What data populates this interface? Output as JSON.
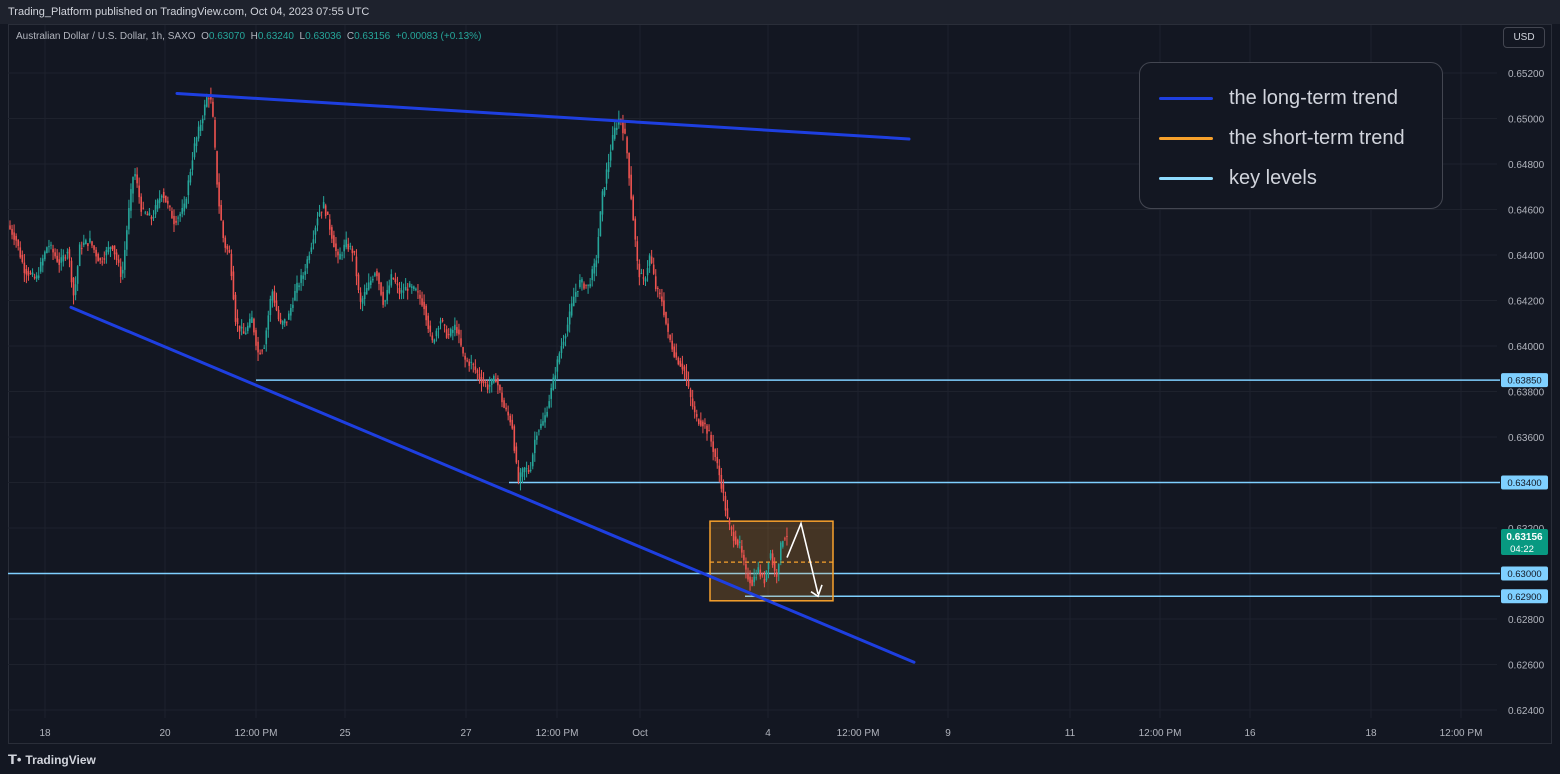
{
  "header": {
    "publish_line": "Trading_Platform published on TradingView.com, Oct 04, 2023 07:55 UTC"
  },
  "symbol": {
    "name": "Australian Dollar / U.S. Dollar, 1h, SAXO",
    "open_label": "O",
    "open": "0.63070",
    "high_label": "H",
    "high": "0.63240",
    "low_label": "L",
    "low": "0.63036",
    "close_label": "C",
    "close": "0.63156",
    "change": "+0.00083 (+0.13%)"
  },
  "currency_button": "USD",
  "legend": {
    "items": [
      {
        "label": "the long-term trend",
        "color": "#1e3fe0"
      },
      {
        "label": "the short-term trend",
        "color": "#f7a12c"
      },
      {
        "label": "key levels",
        "color": "#8fdcff"
      }
    ]
  },
  "footer": {
    "brand": "TradingView",
    "brand_icon": "tradingview-logo-icon"
  },
  "chart_data": {
    "type": "candlestick",
    "title": "",
    "price_ticks": [
      "0.65200",
      "0.65000",
      "0.64800",
      "0.64600",
      "0.64400",
      "0.64200",
      "0.64000",
      "0.63800",
      "0.63600",
      "0.63400",
      "0.63200",
      "0.62800",
      "0.62600",
      "0.62400"
    ],
    "y_range": [
      0.6236,
      0.6546
    ],
    "time_ticks": [
      "18",
      "20",
      "12:00 PM",
      "25",
      "27",
      "12:00 PM",
      "Oct",
      "4",
      "12:00 PM",
      "9",
      "11",
      "12:00 PM",
      "16",
      "18",
      "12:00 PM"
    ],
    "key_levels": [
      {
        "price": 0.6385,
        "label": "0.63850",
        "from": "Sep 21"
      },
      {
        "price": 0.634,
        "label": "0.63400",
        "from": "Sep 28"
      },
      {
        "price": 0.63,
        "label": "0.63000",
        "from": "Sep 18"
      },
      {
        "price": 0.629,
        "label": "0.62900",
        "from": "Oct 3"
      }
    ],
    "last_price": {
      "price": 0.63156,
      "label": "0.63156",
      "countdown": "04:22",
      "color": "#089981"
    },
    "long_term_trend_lines": [
      {
        "from": {
          "date": "Sep 19",
          "price": 0.6511
        },
        "to": {
          "date": "Oct 8",
          "price": 0.6491
        }
      },
      {
        "from": {
          "date": "Sep 18",
          "price": 0.6417
        },
        "to": {
          "date": "Oct 8",
          "price": 0.6261
        }
      }
    ],
    "consolidation_box": {
      "top": 0.6323,
      "bottom": 0.6288,
      "mid": 0.6305,
      "from": "Oct 3",
      "to": "Oct 4"
    },
    "projection_arrow": "up then down toward 0.62900",
    "colors": {
      "up": "#26a69a",
      "down": "#ef5350",
      "background": "#131722",
      "grid": "#1e222d",
      "trend": "#1e3fe0",
      "level": "#7fd0ff",
      "box": "#f7a12c"
    },
    "price_path": [
      [
        0,
        0.6453
      ],
      [
        8,
        0.6447
      ],
      [
        16,
        0.6434
      ],
      [
        28,
        0.6429
      ],
      [
        40,
        0.6445
      ],
      [
        52,
        0.6436
      ],
      [
        60,
        0.6443
      ],
      [
        66,
        0.6421
      ],
      [
        72,
        0.6444
      ],
      [
        82,
        0.6446
      ],
      [
        92,
        0.6437
      ],
      [
        104,
        0.6445
      ],
      [
        114,
        0.643
      ],
      [
        120,
        0.6456
      ],
      [
        126,
        0.6478
      ],
      [
        134,
        0.6459
      ],
      [
        144,
        0.6456
      ],
      [
        154,
        0.6468
      ],
      [
        166,
        0.6455
      ],
      [
        176,
        0.646
      ],
      [
        186,
        0.6487
      ],
      [
        194,
        0.65
      ],
      [
        200,
        0.6511
      ],
      [
        204,
        0.6506
      ],
      [
        210,
        0.6466
      ],
      [
        216,
        0.6445
      ],
      [
        222,
        0.644
      ],
      [
        228,
        0.641
      ],
      [
        236,
        0.6405
      ],
      [
        244,
        0.6412
      ],
      [
        250,
        0.6397
      ],
      [
        256,
        0.64
      ],
      [
        264,
        0.6425
      ],
      [
        272,
        0.6409
      ],
      [
        280,
        0.6412
      ],
      [
        288,
        0.6425
      ],
      [
        296,
        0.6432
      ],
      [
        304,
        0.6446
      ],
      [
        310,
        0.6458
      ],
      [
        316,
        0.6462
      ],
      [
        322,
        0.6452
      ],
      [
        330,
        0.6438
      ],
      [
        338,
        0.6445
      ],
      [
        346,
        0.6441
      ],
      [
        352,
        0.6418
      ],
      [
        360,
        0.6426
      ],
      [
        368,
        0.6434
      ],
      [
        376,
        0.6418
      ],
      [
        384,
        0.6431
      ],
      [
        392,
        0.6423
      ],
      [
        400,
        0.6426
      ],
      [
        408,
        0.6424
      ],
      [
        416,
        0.6418
      ],
      [
        424,
        0.6401
      ],
      [
        432,
        0.6412
      ],
      [
        440,
        0.6404
      ],
      [
        448,
        0.6409
      ],
      [
        456,
        0.6394
      ],
      [
        464,
        0.6392
      ],
      [
        472,
        0.6386
      ],
      [
        480,
        0.6382
      ],
      [
        488,
        0.6386
      ],
      [
        496,
        0.6373
      ],
      [
        504,
        0.6366
      ],
      [
        510,
        0.634
      ],
      [
        516,
        0.6346
      ],
      [
        522,
        0.6345
      ],
      [
        528,
        0.6362
      ],
      [
        536,
        0.6367
      ],
      [
        544,
        0.6382
      ],
      [
        552,
        0.6398
      ],
      [
        560,
        0.641
      ],
      [
        566,
        0.6422
      ],
      [
        572,
        0.6428
      ],
      [
        580,
        0.6426
      ],
      [
        588,
        0.6437
      ],
      [
        594,
        0.6465
      ],
      [
        600,
        0.648
      ],
      [
        606,
        0.6494
      ],
      [
        612,
        0.6501
      ],
      [
        618,
        0.649
      ],
      [
        624,
        0.6462
      ],
      [
        630,
        0.6433
      ],
      [
        636,
        0.6428
      ],
      [
        642,
        0.644
      ],
      [
        648,
        0.6425
      ],
      [
        654,
        0.642
      ],
      [
        660,
        0.6405
      ],
      [
        668,
        0.6395
      ],
      [
        676,
        0.639
      ],
      [
        682,
        0.6378
      ],
      [
        688,
        0.6368
      ],
      [
        696,
        0.6366
      ],
      [
        702,
        0.636
      ],
      [
        708,
        0.635
      ],
      [
        714,
        0.6338
      ],
      [
        720,
        0.6322
      ],
      [
        726,
        0.6316
      ],
      [
        732,
        0.6312
      ],
      [
        738,
        0.63
      ],
      [
        744,
        0.6296
      ],
      [
        750,
        0.6302
      ],
      [
        756,
        0.6296
      ],
      [
        762,
        0.631
      ],
      [
        768,
        0.6298
      ],
      [
        774,
        0.6315
      ],
      [
        778,
        0.6317
      ]
    ]
  }
}
